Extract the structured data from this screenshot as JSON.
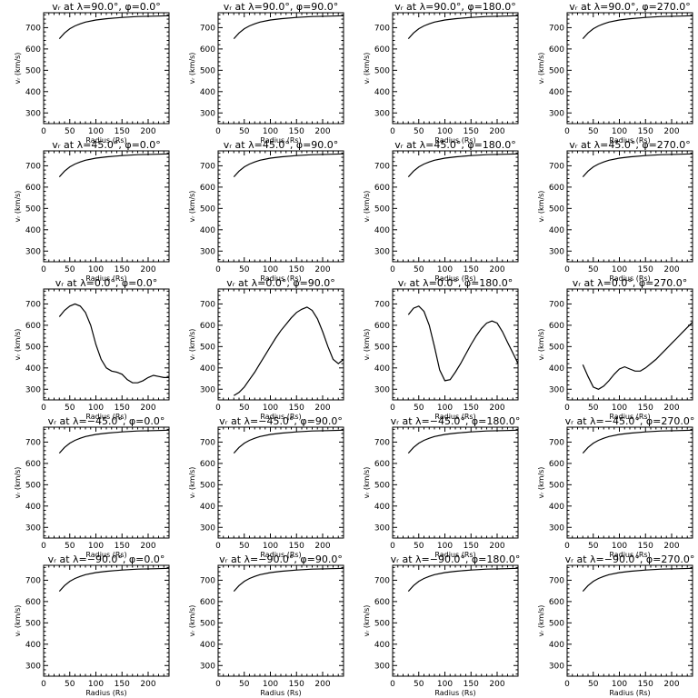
{
  "chart_data": [
    {
      "type": "line",
      "title": "vᵣ at λ=90.0°, φ=0.0°",
      "xlabel": "Radius (Rs)",
      "ylabel": "vᵣ (km/s)",
      "xlim": [
        0,
        240
      ],
      "ylim": [
        250,
        770
      ],
      "xticks": [
        0,
        50,
        100,
        150,
        200
      ],
      "yticks": [
        300,
        400,
        500,
        600,
        700
      ],
      "x": [
        30,
        40,
        50,
        60,
        70,
        80,
        100,
        120,
        150,
        180,
        210,
        240
      ],
      "y": [
        648,
        675,
        695,
        708,
        718,
        726,
        736,
        742,
        748,
        752,
        754,
        756
      ]
    },
    {
      "type": "line",
      "title": "vᵣ at λ=90.0°, φ=90.0°",
      "xlabel": "Radius (Rs)",
      "ylabel": "vᵣ (km/s)",
      "xlim": [
        0,
        240
      ],
      "ylim": [
        250,
        770
      ],
      "xticks": [
        0,
        50,
        100,
        150,
        200
      ],
      "yticks": [
        300,
        400,
        500,
        600,
        700
      ],
      "x": [
        30,
        40,
        50,
        60,
        70,
        80,
        100,
        120,
        150,
        180,
        210,
        240
      ],
      "y": [
        648,
        675,
        695,
        708,
        718,
        726,
        736,
        742,
        748,
        752,
        754,
        756
      ]
    },
    {
      "type": "line",
      "title": "vᵣ at λ=90.0°, φ=180.0°",
      "xlabel": "Radius (Rs)",
      "ylabel": "vᵣ (km/s)",
      "xlim": [
        0,
        240
      ],
      "ylim": [
        250,
        770
      ],
      "xticks": [
        0,
        50,
        100,
        150,
        200
      ],
      "yticks": [
        300,
        400,
        500,
        600,
        700
      ],
      "x": [
        30,
        40,
        50,
        60,
        70,
        80,
        100,
        120,
        150,
        180,
        210,
        240
      ],
      "y": [
        648,
        675,
        695,
        708,
        718,
        726,
        736,
        742,
        748,
        752,
        754,
        756
      ]
    },
    {
      "type": "line",
      "title": "vᵣ at λ=90.0°, φ=270.0°",
      "xlabel": "Radius (Rs)",
      "ylabel": "vᵣ (km/s)",
      "xlim": [
        0,
        240
      ],
      "ylim": [
        250,
        770
      ],
      "xticks": [
        0,
        50,
        100,
        150,
        200
      ],
      "yticks": [
        300,
        400,
        500,
        600,
        700
      ],
      "x": [
        30,
        40,
        50,
        60,
        70,
        80,
        100,
        120,
        150,
        180,
        210,
        240
      ],
      "y": [
        648,
        675,
        695,
        708,
        718,
        726,
        736,
        742,
        748,
        752,
        754,
        756
      ]
    },
    {
      "type": "line",
      "title": "vᵣ at λ=45.0°, φ=0.0°",
      "xlabel": "Radius (Rs)",
      "ylabel": "vᵣ (km/s)",
      "xlim": [
        0,
        240
      ],
      "ylim": [
        250,
        770
      ],
      "xticks": [
        0,
        50,
        100,
        150,
        200
      ],
      "yticks": [
        300,
        400,
        500,
        600,
        700
      ],
      "x": [
        30,
        40,
        50,
        60,
        70,
        80,
        100,
        120,
        150,
        180,
        210,
        240
      ],
      "y": [
        648,
        675,
        695,
        708,
        718,
        726,
        736,
        742,
        748,
        752,
        754,
        756
      ]
    },
    {
      "type": "line",
      "title": "vᵣ at λ=45.0°, φ=90.0°",
      "xlabel": "Radius (Rs)",
      "ylabel": "vᵣ (km/s)",
      "xlim": [
        0,
        240
      ],
      "ylim": [
        250,
        770
      ],
      "xticks": [
        0,
        50,
        100,
        150,
        200
      ],
      "yticks": [
        300,
        400,
        500,
        600,
        700
      ],
      "x": [
        30,
        40,
        50,
        60,
        70,
        80,
        100,
        120,
        150,
        180,
        210,
        240
      ],
      "y": [
        648,
        675,
        695,
        708,
        718,
        726,
        736,
        742,
        748,
        752,
        754,
        756
      ]
    },
    {
      "type": "line",
      "title": "vᵣ at λ=45.0°, φ=180.0°",
      "xlabel": "Radius (Rs)",
      "ylabel": "vᵣ (km/s)",
      "xlim": [
        0,
        240
      ],
      "ylim": [
        250,
        770
      ],
      "xticks": [
        0,
        50,
        100,
        150,
        200
      ],
      "yticks": [
        300,
        400,
        500,
        600,
        700
      ],
      "x": [
        30,
        40,
        50,
        60,
        70,
        80,
        100,
        120,
        150,
        180,
        210,
        240
      ],
      "y": [
        648,
        675,
        695,
        708,
        718,
        726,
        736,
        742,
        748,
        752,
        754,
        756
      ]
    },
    {
      "type": "line",
      "title": "vᵣ at λ=45.0°, φ=270.0°",
      "xlabel": "Radius (Rs)",
      "ylabel": "vᵣ (km/s)",
      "xlim": [
        0,
        240
      ],
      "ylim": [
        250,
        770
      ],
      "xticks": [
        0,
        50,
        100,
        150,
        200
      ],
      "yticks": [
        300,
        400,
        500,
        600,
        700
      ],
      "x": [
        30,
        40,
        50,
        60,
        70,
        80,
        100,
        120,
        150,
        180,
        210,
        240
      ],
      "y": [
        648,
        675,
        695,
        708,
        718,
        726,
        736,
        742,
        748,
        752,
        754,
        756
      ]
    },
    {
      "type": "line",
      "title": "vᵣ at λ=0.0°, φ=0.0°",
      "xlabel": "Radius (Rs)",
      "ylabel": "vᵣ (km/s)",
      "xlim": [
        0,
        240
      ],
      "ylim": [
        250,
        770
      ],
      "xticks": [
        0,
        50,
        100,
        150,
        200
      ],
      "yticks": [
        300,
        400,
        500,
        600,
        700
      ],
      "x": [
        30,
        40,
        50,
        60,
        70,
        80,
        90,
        100,
        110,
        120,
        130,
        140,
        150,
        160,
        170,
        180,
        190,
        200,
        210,
        220,
        230,
        240
      ],
      "y": [
        640,
        670,
        690,
        700,
        690,
        660,
        600,
        510,
        440,
        400,
        385,
        380,
        370,
        345,
        330,
        330,
        340,
        355,
        365,
        360,
        355,
        355
      ]
    },
    {
      "type": "line",
      "title": "vᵣ at λ=0.0°, φ=90.0°",
      "xlabel": "Radius (Rs)",
      "ylabel": "vᵣ (km/s)",
      "xlim": [
        0,
        240
      ],
      "ylim": [
        250,
        770
      ],
      "xticks": [
        0,
        50,
        100,
        150,
        200
      ],
      "yticks": [
        300,
        400,
        500,
        600,
        700
      ],
      "x": [
        30,
        40,
        50,
        60,
        70,
        80,
        90,
        100,
        110,
        120,
        130,
        140,
        150,
        160,
        170,
        180,
        190,
        200,
        210,
        220,
        230,
        240
      ],
      "y": [
        270,
        285,
        310,
        345,
        380,
        420,
        460,
        500,
        540,
        575,
        605,
        635,
        660,
        675,
        685,
        670,
        630,
        570,
        500,
        440,
        420,
        440
      ]
    },
    {
      "type": "line",
      "title": "vᵣ at λ=0.0°, φ=180.0°",
      "xlabel": "Radius (Rs)",
      "ylabel": "vᵣ (km/s)",
      "xlim": [
        0,
        240
      ],
      "ylim": [
        250,
        770
      ],
      "xticks": [
        0,
        50,
        100,
        150,
        200
      ],
      "yticks": [
        300,
        400,
        500,
        600,
        700
      ],
      "x": [
        30,
        40,
        50,
        60,
        70,
        80,
        90,
        100,
        110,
        120,
        130,
        140,
        150,
        160,
        170,
        180,
        190,
        200,
        210,
        220,
        230,
        240
      ],
      "y": [
        650,
        680,
        690,
        665,
        600,
        500,
        390,
        340,
        345,
        380,
        420,
        465,
        510,
        550,
        585,
        610,
        620,
        610,
        570,
        520,
        470,
        420
      ]
    },
    {
      "type": "line",
      "title": "vᵣ at λ=0.0°, φ=270.0°",
      "xlabel": "Radius (Rs)",
      "ylabel": "vᵣ (km/s)",
      "xlim": [
        0,
        240
      ],
      "ylim": [
        250,
        770
      ],
      "xticks": [
        0,
        50,
        100,
        150,
        200
      ],
      "yticks": [
        300,
        400,
        500,
        600,
        700
      ],
      "x": [
        30,
        40,
        50,
        60,
        70,
        80,
        90,
        100,
        110,
        120,
        130,
        140,
        150,
        160,
        170,
        180,
        190,
        200,
        210,
        220,
        230,
        240
      ],
      "y": [
        415,
        360,
        310,
        300,
        315,
        340,
        370,
        395,
        405,
        395,
        385,
        385,
        400,
        420,
        440,
        465,
        490,
        515,
        540,
        565,
        590,
        615
      ]
    },
    {
      "type": "line",
      "title": "vᵣ at λ=−45.0°, φ=0.0°",
      "xlabel": "Radius (Rs)",
      "ylabel": "vᵣ (km/s)",
      "xlim": [
        0,
        240
      ],
      "ylim": [
        250,
        770
      ],
      "xticks": [
        0,
        50,
        100,
        150,
        200
      ],
      "yticks": [
        300,
        400,
        500,
        600,
        700
      ],
      "x": [
        30,
        40,
        50,
        60,
        70,
        80,
        100,
        120,
        150,
        180,
        210,
        240
      ],
      "y": [
        648,
        675,
        695,
        708,
        718,
        726,
        736,
        742,
        748,
        752,
        754,
        756
      ]
    },
    {
      "type": "line",
      "title": "vᵣ at λ=−45.0°, φ=90.0°",
      "xlabel": "Radius (Rs)",
      "ylabel": "vᵣ (km/s)",
      "xlim": [
        0,
        240
      ],
      "ylim": [
        250,
        770
      ],
      "xticks": [
        0,
        50,
        100,
        150,
        200
      ],
      "yticks": [
        300,
        400,
        500,
        600,
        700
      ],
      "x": [
        30,
        40,
        50,
        60,
        70,
        80,
        100,
        120,
        150,
        180,
        210,
        240
      ],
      "y": [
        648,
        675,
        695,
        708,
        718,
        726,
        736,
        742,
        748,
        752,
        754,
        756
      ]
    },
    {
      "type": "line",
      "title": "vᵣ at λ=−45.0°, φ=180.0°",
      "xlabel": "Radius (Rs)",
      "ylabel": "vᵣ (km/s)",
      "xlim": [
        0,
        240
      ],
      "ylim": [
        250,
        770
      ],
      "xticks": [
        0,
        50,
        100,
        150,
        200
      ],
      "yticks": [
        300,
        400,
        500,
        600,
        700
      ],
      "x": [
        30,
        40,
        50,
        60,
        70,
        80,
        100,
        120,
        150,
        180,
        210,
        240
      ],
      "y": [
        648,
        675,
        695,
        708,
        718,
        726,
        736,
        742,
        748,
        752,
        754,
        756
      ]
    },
    {
      "type": "line",
      "title": "vᵣ at λ=−45.0°, φ=270.0°",
      "xlabel": "Radius (Rs)",
      "ylabel": "vᵣ (km/s)",
      "xlim": [
        0,
        240
      ],
      "ylim": [
        250,
        770
      ],
      "xticks": [
        0,
        50,
        100,
        150,
        200
      ],
      "yticks": [
        300,
        400,
        500,
        600,
        700
      ],
      "x": [
        30,
        40,
        50,
        60,
        70,
        80,
        100,
        120,
        150,
        180,
        210,
        240
      ],
      "y": [
        648,
        675,
        695,
        708,
        718,
        726,
        736,
        742,
        748,
        752,
        754,
        756
      ]
    },
    {
      "type": "line",
      "title": "vᵣ at λ=−90.0°, φ=0.0°",
      "xlabel": "Radius (Rs)",
      "ylabel": "vᵣ (km/s)",
      "xlim": [
        0,
        240
      ],
      "ylim": [
        250,
        770
      ],
      "xticks": [
        0,
        50,
        100,
        150,
        200
      ],
      "yticks": [
        300,
        400,
        500,
        600,
        700
      ],
      "x": [
        30,
        40,
        50,
        60,
        70,
        80,
        100,
        120,
        150,
        180,
        210,
        240
      ],
      "y": [
        648,
        675,
        695,
        708,
        718,
        726,
        736,
        742,
        748,
        752,
        754,
        756
      ]
    },
    {
      "type": "line",
      "title": "vᵣ at λ=−90.0°, φ=90.0°",
      "xlabel": "Radius (Rs)",
      "ylabel": "vᵣ (km/s)",
      "xlim": [
        0,
        240
      ],
      "ylim": [
        250,
        770
      ],
      "xticks": [
        0,
        50,
        100,
        150,
        200
      ],
      "yticks": [
        300,
        400,
        500,
        600,
        700
      ],
      "x": [
        30,
        40,
        50,
        60,
        70,
        80,
        100,
        120,
        150,
        180,
        210,
        240
      ],
      "y": [
        648,
        675,
        695,
        708,
        718,
        726,
        736,
        742,
        748,
        752,
        754,
        756
      ]
    },
    {
      "type": "line",
      "title": "vᵣ at λ=−90.0°, φ=180.0°",
      "xlabel": "Radius (Rs)",
      "ylabel": "vᵣ (km/s)",
      "xlim": [
        0,
        240
      ],
      "ylim": [
        250,
        770
      ],
      "xticks": [
        0,
        50,
        100,
        150,
        200
      ],
      "yticks": [
        300,
        400,
        500,
        600,
        700
      ],
      "x": [
        30,
        40,
        50,
        60,
        70,
        80,
        100,
        120,
        150,
        180,
        210,
        240
      ],
      "y": [
        648,
        675,
        695,
        708,
        718,
        726,
        736,
        742,
        748,
        752,
        754,
        756
      ]
    },
    {
      "type": "line",
      "title": "vᵣ at λ=−90.0°, φ=270.0°",
      "xlabel": "Radius (Rs)",
      "ylabel": "vᵣ (km/s)",
      "xlim": [
        0,
        240
      ],
      "ylim": [
        250,
        770
      ],
      "xticks": [
        0,
        50,
        100,
        150,
        200
      ],
      "yticks": [
        300,
        400,
        500,
        600,
        700
      ],
      "x": [
        30,
        40,
        50,
        60,
        70,
        80,
        100,
        120,
        150,
        180,
        210,
        240
      ],
      "y": [
        648,
        675,
        695,
        708,
        718,
        726,
        736,
        742,
        748,
        752,
        754,
        756
      ]
    }
  ]
}
